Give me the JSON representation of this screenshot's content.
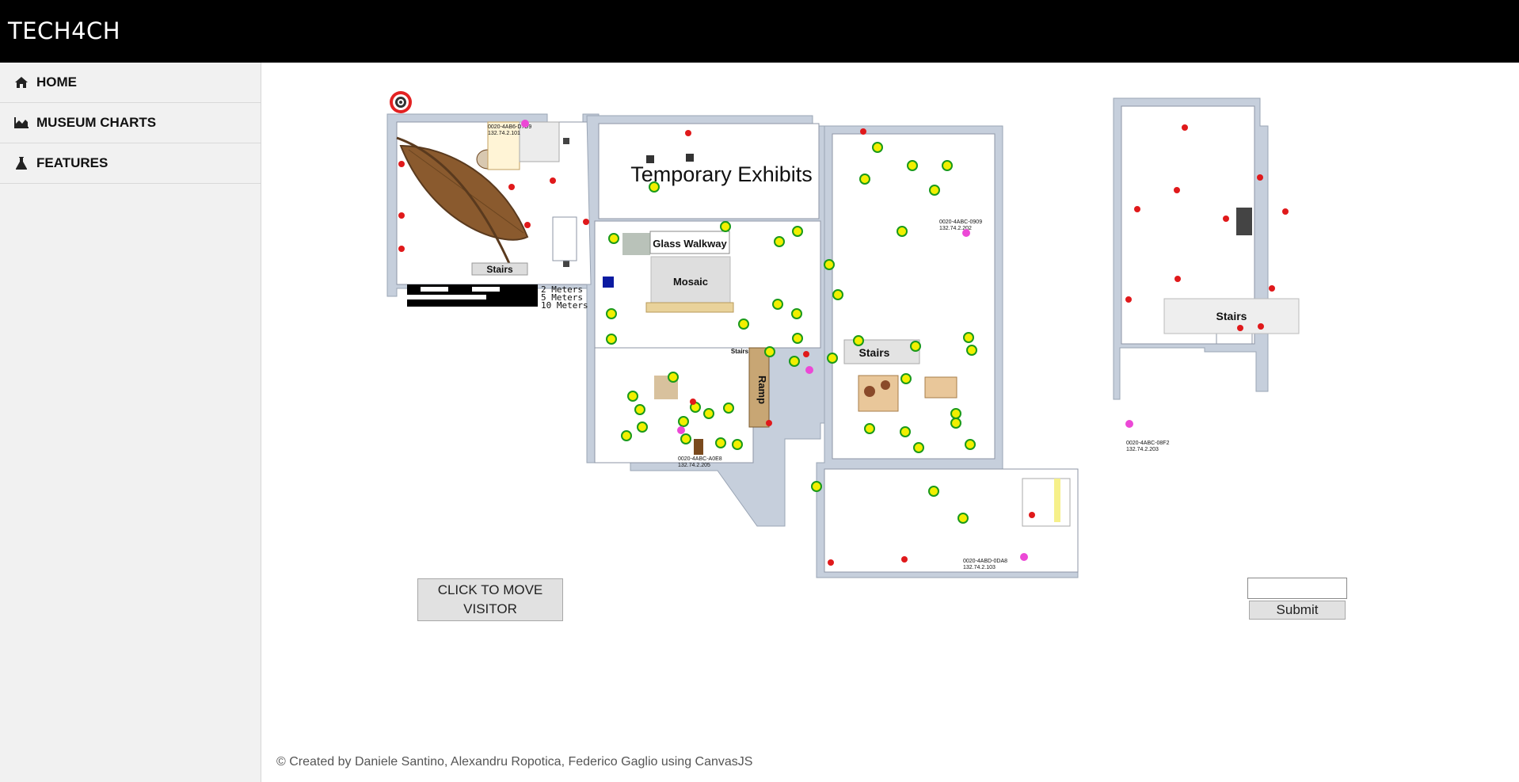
{
  "header": {
    "brand": "TECH4CH"
  },
  "sidebar": {
    "items": [
      {
        "label": "HOME",
        "icon": "home-icon"
      },
      {
        "label": "MUSEUM CHARTS",
        "icon": "area-chart-icon"
      },
      {
        "label": "FEATURES",
        "icon": "flask-icon"
      }
    ]
  },
  "map": {
    "room_labels": {
      "temporary_exhibits": "Temporary Exhibits",
      "glass_walkway": "Glass Walkway",
      "mosaic": "Mosaic",
      "ramp": "Ramp",
      "stairs_left": "Stairs",
      "stairs_center": "Stairs",
      "stairs_right": "Stairs",
      "stairs_small": "Stairs"
    },
    "scale": {
      "line1": "2  Meters",
      "line2": "5  Meters",
      "line3": "10 Meters"
    },
    "gateways": [
      {
        "id": "0020-4AB6-D7D9",
        "ip": "132.74.2.101"
      },
      {
        "id": "0020-4ABC-0909",
        "ip": "132.74.2.202"
      },
      {
        "id": "0020-4ABC-08F2",
        "ip": "132.74.2.203"
      },
      {
        "id": "0020-4ABD-0DA8",
        "ip": "132.74.2.103"
      },
      {
        "id": "0020-4ABC-A0E8",
        "ip": "132.74.2.205"
      }
    ],
    "colors": {
      "sensor_active": "#f2ef00",
      "sensor_ring": "#1a9a1a",
      "sensor_offline": "#e0191b",
      "gateway": "#ec48d6"
    }
  },
  "controls": {
    "move_button_line1": "CLICK TO MOVE",
    "move_button_line2": "VISITOR",
    "input_value": "",
    "submit_label": "Submit"
  },
  "footer": {
    "text": "© Created by Daniele Santino, Alexandru Ropotica, Federico Gaglio using CanvasJS"
  }
}
